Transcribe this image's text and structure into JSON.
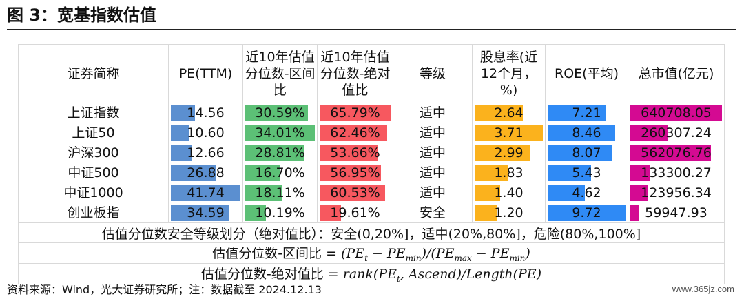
{
  "title": "图 3：宽基指数估值",
  "headers": {
    "name": "证券简称",
    "pe": "PE(TTM)",
    "range_pct": "近10年估值分位数-区间比",
    "abs_pct": "近10年估值分位数-绝对值比",
    "level": "等级",
    "dividend": "股息率(近12个月，%)",
    "roe": "ROE(平均)",
    "mktcap": "总市值(亿元)"
  },
  "rows": [
    {
      "name": "上证指数",
      "pe": "14.56",
      "range_pct": "30.59%",
      "abs_pct": "65.79%",
      "level": "适中",
      "dividend": "2.64",
      "roe": "7.21",
      "mktcap": "640708.05"
    },
    {
      "name": "上证50",
      "pe": "10.60",
      "range_pct": "34.01%",
      "abs_pct": "62.46%",
      "level": "适中",
      "dividend": "3.71",
      "roe": "8.46",
      "mktcap": "260307.24"
    },
    {
      "name": "沪深300",
      "pe": "12.66",
      "range_pct": "28.81%",
      "abs_pct": "53.66%",
      "level": "适中",
      "dividend": "2.99",
      "roe": "8.07",
      "mktcap": "562076.76"
    },
    {
      "name": "中证500",
      "pe": "26.88",
      "range_pct": "16.70%",
      "abs_pct": "56.95%",
      "level": "适中",
      "dividend": "1.83",
      "roe": "5.43",
      "mktcap": "133300.27"
    },
    {
      "name": "中证1000",
      "pe": "41.74",
      "range_pct": "18.11%",
      "abs_pct": "60.53%",
      "level": "适中",
      "dividend": "1.40",
      "roe": "4.62",
      "mktcap": "123956.34"
    },
    {
      "name": "创业板指",
      "pe": "34.59",
      "range_pct": "10.19%",
      "abs_pct": "19.61%",
      "level": "安全",
      "dividend": "1.20",
      "roe": "9.72",
      "mktcap": "59947.93"
    }
  ],
  "notes": {
    "grading": "估值分位数安全等级划分（绝对值比）：安全(0,20%]，适中(20%,80%]，危险(80%,100%]",
    "range_label": "估值分位数-区间比 =",
    "abs_label": "估值分位数-绝对值比 =",
    "formula_range": {
      "open": "(",
      "pe1": "PE",
      "t": "t",
      "minus1": " − ",
      "pe2": "PE",
      "min1": "min",
      "mid": ")/(",
      "pe3": "PE",
      "max": "max",
      "minus2": " − ",
      "pe4": "PE",
      "min2": "min",
      "close": ")"
    },
    "formula_abs": "rank(PE",
    "formula_abs_t": "t",
    "formula_abs_rest": ", Ascend)/Length(PE)"
  },
  "source": "资料来源：Wind，光大证券研究所；注：数据截至 2024.12.13",
  "watermark": "www.365jz.com",
  "colors": {
    "pe": "#5b8fd0",
    "range_pct": "#5cc076",
    "abs_pct": "#f7585f",
    "dividend": "#fbb21d",
    "roe": "#2f8af5",
    "mktcap": "#d40a92"
  }
}
